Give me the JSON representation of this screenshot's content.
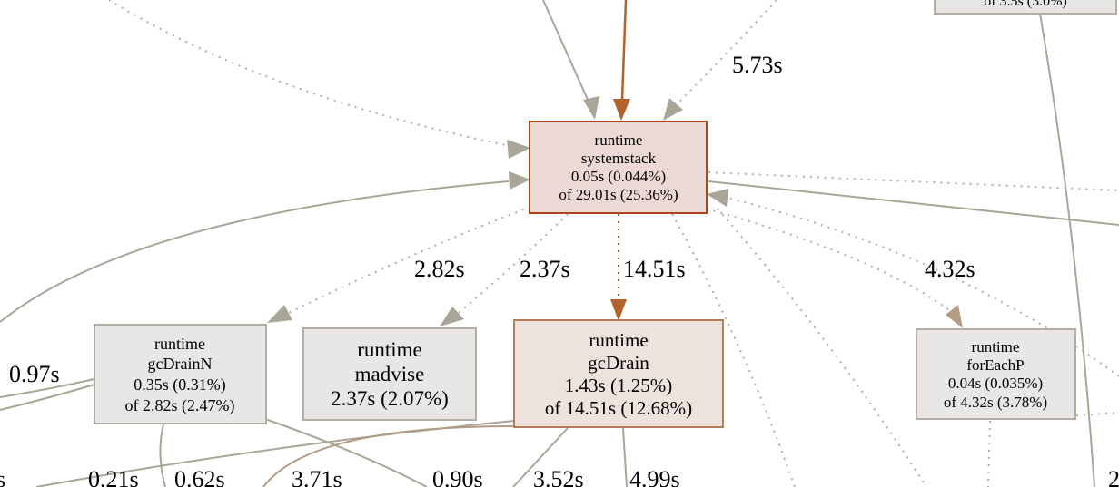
{
  "graph": {
    "nodes": {
      "systemstack": {
        "lines": [
          "runtime",
          "systemstack",
          "0.05s (0.044%)",
          "of 29.01s (25.36%)"
        ],
        "fill": "#edd9d3",
        "stroke": "#b2431d"
      },
      "gcDrainN": {
        "lines": [
          "runtime",
          "gcDrainN",
          "0.35s (0.31%)",
          "of 2.82s (2.47%)"
        ],
        "fill": "#e8e7e5",
        "stroke": "#b2aea4"
      },
      "madvise": {
        "lines": [
          "runtime",
          "madvise",
          "2.37s (2.07%)"
        ],
        "fill": "#e8e7e5",
        "stroke": "#b2aea4"
      },
      "gcDrain": {
        "lines": [
          "runtime",
          "gcDrain",
          "1.43s (1.25%)",
          "of 14.51s (12.68%)"
        ],
        "fill": "#ede2dc",
        "stroke": "#b27d57"
      },
      "forEachP": {
        "lines": [
          "runtime",
          "forEachP",
          "0.04s (0.035%)",
          "of 4.32s (3.78%)"
        ],
        "fill": "#e8e7e5",
        "stroke": "#b2aea4"
      },
      "topRightPartial": {
        "text": "of 3.5s (3.0%)"
      }
    },
    "edge_labels": {
      "in_573": "5.73s",
      "to_gcDrainN": "2.82s",
      "to_madvise": "2.37s",
      "to_gcDrain": "14.51s",
      "to_forEachP": "4.32s",
      "left_097": "0.97s",
      "bottom_edge_s": "s",
      "bottom_021": "0.21s",
      "bottom_062": "0.62s",
      "bottom_371": "3.71s",
      "bottom_090": "0.90s",
      "bottom_352": "3.52s",
      "bottom_499": "4.99s",
      "bottom_right_2": "2"
    },
    "colors": {
      "grey_edge": "#b2aea4",
      "hot_edge": "#b2622c",
      "dotted_edge": "#b2aea4"
    }
  }
}
